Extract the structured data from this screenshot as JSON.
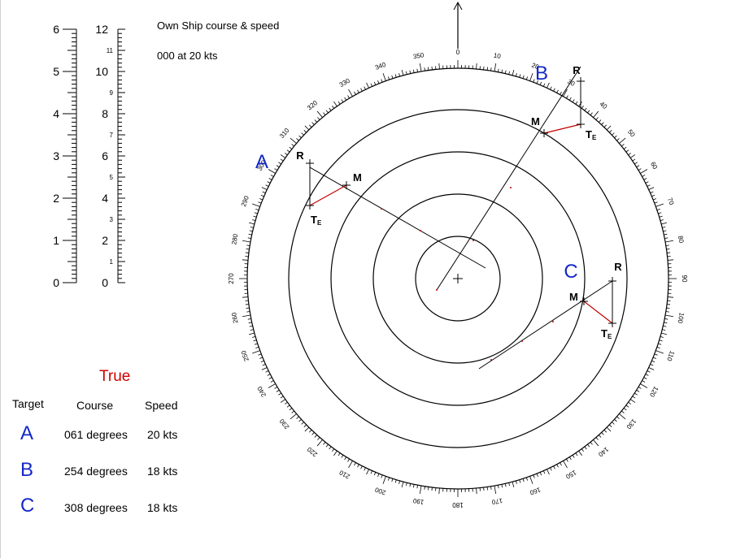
{
  "own_ship": {
    "title": "Own Ship course & speed",
    "value": "000 at 20 kts"
  },
  "scales": {
    "range_labels": [
      "0",
      "1",
      "2",
      "3",
      "4",
      "5",
      "6"
    ],
    "speed_major_labels": [
      "0",
      "2",
      "4",
      "6",
      "8",
      "10",
      "12"
    ],
    "speed_minor_labels": [
      "1",
      "3",
      "5",
      "7",
      "9",
      "11"
    ]
  },
  "plot": {
    "bearing_labels": [
      "0",
      "10",
      "20",
      "30",
      "40",
      "50",
      "60",
      "70",
      "80",
      "90",
      "100",
      "110",
      "120",
      "130",
      "140",
      "150",
      "160",
      "170",
      "180",
      "190",
      "200",
      "210",
      "220",
      "230",
      "240",
      "250",
      "260",
      "270",
      "280",
      "290",
      "300",
      "310",
      "320",
      "330",
      "340",
      "350"
    ],
    "targets": [
      {
        "id": "A",
        "r": "R",
        "m": "M",
        "te": "T",
        "te_sub": "E"
      },
      {
        "id": "B",
        "r": "R",
        "m": "M",
        "te": "T",
        "te_sub": "E"
      },
      {
        "id": "C",
        "r": "R",
        "m": "M",
        "te": "T",
        "te_sub": "E"
      }
    ]
  },
  "table": {
    "title": "True",
    "headers": [
      "Target",
      "Course",
      "Speed"
    ],
    "rows": [
      {
        "target": "A",
        "course": "061 degrees",
        "speed": "20 kts"
      },
      {
        "target": "B",
        "course": "254 degrees",
        "speed": "18 kts"
      },
      {
        "target": "C",
        "course": "308 degrees",
        "speed": "18 kts"
      }
    ]
  },
  "colors": {
    "target_letter": "#1428c8",
    "true_heading": "#d00000",
    "vector_red": "#c00000",
    "line": "#000000"
  }
}
